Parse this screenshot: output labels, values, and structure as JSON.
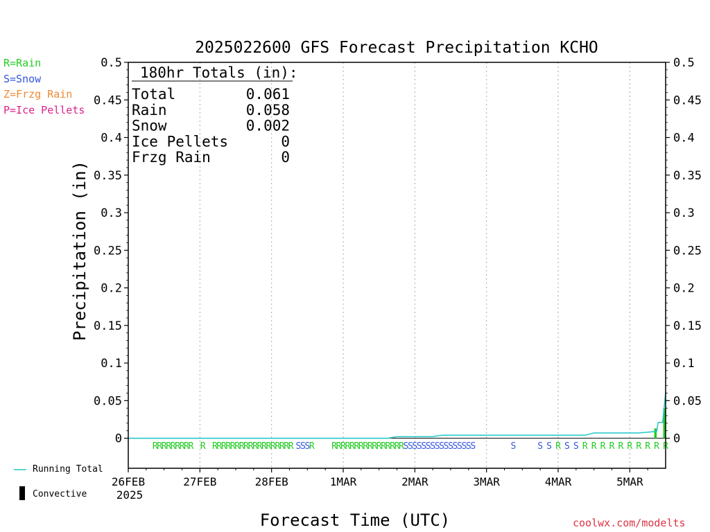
{
  "legend_types": [
    {
      "label": "R=Rain",
      "color": "#22cc22"
    },
    {
      "label": "S=Snow",
      "color": "#3355dd"
    },
    {
      "label": "Z=Frzg Rain",
      "color": "#ee8833"
    },
    {
      "label": "P=Ice Pellets",
      "color": "#dd2288"
    }
  ],
  "bottom_legend": {
    "running_total": "Running Total",
    "convective": "Convective"
  },
  "watermark": "coolwx.com/modelts",
  "totals_box": {
    "heading": "180hr Totals (in):",
    "rows": [
      {
        "label": "Total",
        "value": "0.061"
      },
      {
        "label": "Rain",
        "value": "0.058"
      },
      {
        "label": "Snow",
        "value": "0.002"
      },
      {
        "label": "Ice Pellets",
        "value": "0"
      },
      {
        "label": "Frzg Rain",
        "value": "0"
      }
    ]
  },
  "colors": {
    "running_total": "#1fc7c7",
    "convective": "#000000",
    "rain_bar": "#22cc22",
    "grid": "#aaaaaa"
  },
  "chart_data": {
    "type": "line",
    "title": "2025022600 GFS Forecast Precipitation KCHO",
    "xlabel": "Forecast Time (UTC)",
    "ylabel": "Precipitation (in)",
    "units": "hours from 2025-02-26 00 UTC",
    "xlim": [
      0,
      180
    ],
    "ylim": [
      -0.04,
      0.5
    ],
    "y_ticks": [
      "0",
      "0.05",
      "0.1",
      "0.15",
      "0.2",
      "0.25",
      "0.3",
      "0.35",
      "0.4",
      "0.45",
      "0.5"
    ],
    "y_tick_values": [
      0,
      0.05,
      0.1,
      0.15,
      0.2,
      0.25,
      0.3,
      0.35,
      0.4,
      0.45,
      0.5
    ],
    "x_ticks": [
      {
        "hour": 0,
        "label": "26FEB",
        "sub": "2025"
      },
      {
        "hour": 24,
        "label": "27FEB",
        "sub": ""
      },
      {
        "hour": 48,
        "label": "28FEB",
        "sub": ""
      },
      {
        "hour": 72,
        "label": "1MAR",
        "sub": ""
      },
      {
        "hour": 96,
        "label": "2MAR",
        "sub": ""
      },
      {
        "hour": 120,
        "label": "3MAR",
        "sub": ""
      },
      {
        "hour": 144,
        "label": "4MAR",
        "sub": ""
      },
      {
        "hour": 168,
        "label": "5MAR",
        "sub": ""
      }
    ],
    "grid": true,
    "legend": "left",
    "series": [
      {
        "name": "Running Total",
        "x": [
          0,
          87,
          90,
          102,
          105,
          153,
          156,
          171,
          174,
          177,
          177.5,
          179,
          180
        ],
        "y": [
          0,
          0,
          0.002,
          0.002,
          0.004,
          0.004,
          0.007,
          0.007,
          0.008,
          0.009,
          0.021,
          0.021,
          0.061
        ]
      }
    ],
    "bars": [
      {
        "hour": 177,
        "value": 0.013,
        "color": "#22cc22"
      },
      {
        "hour": 180,
        "value": 0.04,
        "color": "#22cc22"
      }
    ],
    "type_markers": [
      {
        "hour": 9,
        "type": "R"
      },
      {
        "hour": 10.5,
        "type": "R"
      },
      {
        "hour": 12,
        "type": "R"
      },
      {
        "hour": 13.5,
        "type": "R"
      },
      {
        "hour": 15,
        "type": "R"
      },
      {
        "hour": 16.5,
        "type": "R"
      },
      {
        "hour": 18,
        "type": "R"
      },
      {
        "hour": 19.5,
        "type": "R"
      },
      {
        "hour": 21,
        "type": "R"
      },
      {
        "hour": 25,
        "type": "R"
      },
      {
        "hour": 29,
        "type": "R"
      },
      {
        "hour": 30.5,
        "type": "R"
      },
      {
        "hour": 32,
        "type": "R"
      },
      {
        "hour": 33.5,
        "type": "R"
      },
      {
        "hour": 35,
        "type": "R"
      },
      {
        "hour": 36.5,
        "type": "R"
      },
      {
        "hour": 38,
        "type": "R"
      },
      {
        "hour": 39.5,
        "type": "R"
      },
      {
        "hour": 41,
        "type": "R"
      },
      {
        "hour": 42.5,
        "type": "R"
      },
      {
        "hour": 44,
        "type": "R"
      },
      {
        "hour": 45.5,
        "type": "R"
      },
      {
        "hour": 47,
        "type": "R"
      },
      {
        "hour": 48.5,
        "type": "R"
      },
      {
        "hour": 50,
        "type": "R"
      },
      {
        "hour": 51.5,
        "type": "R"
      },
      {
        "hour": 53,
        "type": "R"
      },
      {
        "hour": 54.5,
        "type": "R"
      },
      {
        "hour": 57,
        "type": "S"
      },
      {
        "hour": 58.5,
        "type": "S"
      },
      {
        "hour": 60,
        "type": "S"
      },
      {
        "hour": 61.5,
        "type": "R"
      },
      {
        "hour": 69,
        "type": "R"
      },
      {
        "hour": 70.5,
        "type": "R"
      },
      {
        "hour": 72,
        "type": "R"
      },
      {
        "hour": 73.5,
        "type": "R"
      },
      {
        "hour": 75,
        "type": "R"
      },
      {
        "hour": 76.5,
        "type": "R"
      },
      {
        "hour": 78,
        "type": "R"
      },
      {
        "hour": 79.5,
        "type": "R"
      },
      {
        "hour": 81,
        "type": "R"
      },
      {
        "hour": 82.5,
        "type": "R"
      },
      {
        "hour": 84,
        "type": "R"
      },
      {
        "hour": 85.5,
        "type": "R"
      },
      {
        "hour": 87,
        "type": "R"
      },
      {
        "hour": 88.5,
        "type": "R"
      },
      {
        "hour": 90,
        "type": "R"
      },
      {
        "hour": 91.5,
        "type": "R"
      },
      {
        "hour": 93,
        "type": "S"
      },
      {
        "hour": 94.5,
        "type": "S"
      },
      {
        "hour": 96,
        "type": "S"
      },
      {
        "hour": 97.5,
        "type": "S"
      },
      {
        "hour": 99,
        "type": "S"
      },
      {
        "hour": 100.5,
        "type": "S"
      },
      {
        "hour": 102,
        "type": "S"
      },
      {
        "hour": 103.5,
        "type": "S"
      },
      {
        "hour": 105,
        "type": "S"
      },
      {
        "hour": 106.5,
        "type": "S"
      },
      {
        "hour": 108,
        "type": "S"
      },
      {
        "hour": 109.5,
        "type": "S"
      },
      {
        "hour": 111,
        "type": "S"
      },
      {
        "hour": 112.5,
        "type": "S"
      },
      {
        "hour": 114,
        "type": "S"
      },
      {
        "hour": 115.5,
        "type": "S"
      },
      {
        "hour": 129,
        "type": "S"
      },
      {
        "hour": 138,
        "type": "S"
      },
      {
        "hour": 141,
        "type": "S"
      },
      {
        "hour": 144,
        "type": "R"
      },
      {
        "hour": 147,
        "type": "S"
      },
      {
        "hour": 150,
        "type": "S"
      },
      {
        "hour": 153,
        "type": "R"
      },
      {
        "hour": 156,
        "type": "R"
      },
      {
        "hour": 159,
        "type": "R"
      },
      {
        "hour": 162,
        "type": "R"
      },
      {
        "hour": 165,
        "type": "R"
      },
      {
        "hour": 168,
        "type": "R"
      },
      {
        "hour": 171,
        "type": "R"
      },
      {
        "hour": 174,
        "type": "R"
      },
      {
        "hour": 177,
        "type": "R"
      },
      {
        "hour": 180,
        "type": "R"
      }
    ]
  }
}
